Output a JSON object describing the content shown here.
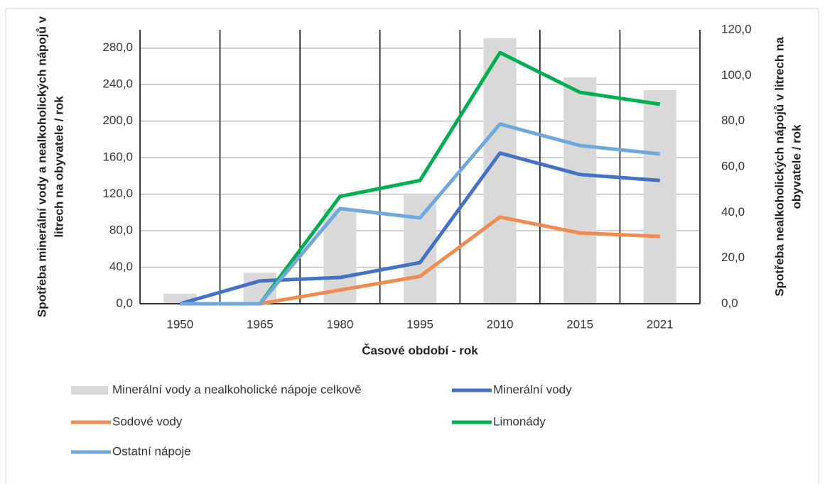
{
  "chart_data": {
    "type": "combo",
    "xlabel": "Časové období - rok",
    "ylabel": [
      "Spotřeba minerální vody a nealkoholických nápojů v",
      "litrech na obyvatele / rok"
    ],
    "y2label": [
      "Spotřeba nealkoholických nápojů v litrech na",
      "obyvatele / rok"
    ],
    "categories": [
      "1950",
      "1965",
      "1980",
      "1995",
      "2010",
      "2015",
      "2021"
    ],
    "ylim": [
      0,
      300
    ],
    "yticks": [
      {
        "value": 0,
        "label": "0,0"
      },
      {
        "value": 40,
        "label": "40,0"
      },
      {
        "value": 80,
        "label": "80,0"
      },
      {
        "value": 120,
        "label": "120,0"
      },
      {
        "value": 160,
        "label": "160,0"
      },
      {
        "value": 200,
        "label": "200,0"
      },
      {
        "value": 240,
        "label": "240,0"
      },
      {
        "value": 280,
        "label": "280,0"
      }
    ],
    "y2lim": [
      0,
      120
    ],
    "y2ticks": [
      {
        "value": 0,
        "label": "0,0"
      },
      {
        "value": 20,
        "label": "20,0"
      },
      {
        "value": 40,
        "label": "40,0"
      },
      {
        "value": 60,
        "label": "60,0"
      },
      {
        "value": 80,
        "label": "80,0"
      },
      {
        "value": 100,
        "label": "100,0"
      },
      {
        "value": 120,
        "label": "120,0"
      }
    ],
    "grid": true,
    "legend": "bottom",
    "series": [
      {
        "name": "Minerální vody a nealkoholické nápoje celkově",
        "type": "bar",
        "color": "#d9d9d9",
        "values": [
          11,
          34,
          104,
          119,
          291,
          248,
          234
        ]
      },
      {
        "name": "Minerální vody",
        "type": "line",
        "axis": "y2",
        "color": "#4472c4",
        "values": [
          0,
          10,
          11.5,
          18,
          66,
          56.6,
          54
        ]
      },
      {
        "name": "Sodové vody",
        "type": "line",
        "axis": "y2",
        "color": "#f08c4f",
        "values": [
          0,
          0,
          6,
          12,
          38,
          31,
          29.5
        ]
      },
      {
        "name": "Limonády",
        "type": "line",
        "axis": "y2",
        "color": "#00b050",
        "values": [
          0,
          0,
          47,
          54,
          110,
          92.6,
          87.4
        ]
      },
      {
        "name": "Ostatní nápoje",
        "type": "line",
        "axis": "y2",
        "color": "#6fa8dc",
        "values": [
          0,
          0,
          41.7,
          37.6,
          78.7,
          69.3,
          65.6
        ]
      }
    ]
  }
}
